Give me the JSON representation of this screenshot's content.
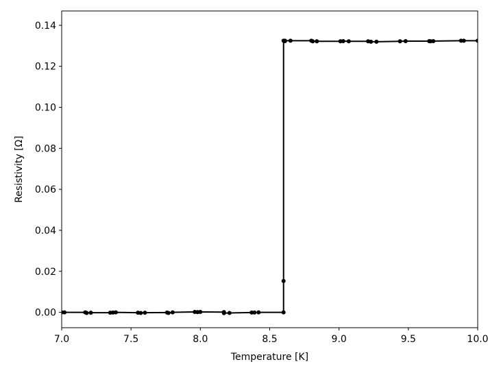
{
  "chart_data": {
    "type": "line",
    "xlabel": "Temperature [K]",
    "ylabel": "Resistivity [Ω]",
    "xlim": [
      7.0,
      10.0
    ],
    "ylim": [
      -0.0075,
      0.147
    ],
    "x_ticks": [
      "7.0",
      "7.5",
      "8.0",
      "8.5",
      "9.0",
      "9.5",
      "10.0"
    ],
    "y_ticks": [
      "0.00",
      "0.02",
      "0.04",
      "0.06",
      "0.08",
      "0.10",
      "0.12",
      "0.14"
    ],
    "grid": false,
    "legend": "none",
    "colors": {
      "line": "#000000",
      "marker": "#000000",
      "frame": "#000000"
    },
    "series": [
      {
        "marker": "circle",
        "x": [
          7.0,
          7.02,
          7.17,
          7.18,
          7.21,
          7.35,
          7.37,
          7.39,
          7.55,
          7.57,
          7.6,
          7.76,
          7.77,
          7.8,
          7.96,
          7.98,
          8.0,
          8.17,
          8.17,
          8.21,
          8.37,
          8.39,
          8.42,
          8.6,
          8.6,
          8.6,
          8.61,
          8.61,
          8.65,
          8.8,
          8.81,
          8.84,
          9.01,
          9.03,
          9.07,
          9.21,
          9.23,
          9.27,
          9.44,
          9.48,
          9.65,
          9.66,
          9.68,
          9.88,
          9.9,
          10.0
        ],
        "y": [
          0.0,
          0.0,
          0.0,
          -0.0003,
          -0.0002,
          -0.0002,
          -0.0001,
          0.0,
          -0.0002,
          -0.0003,
          -0.0002,
          -0.0001,
          -0.0003,
          0.0,
          0.0002,
          0.0001,
          0.0002,
          0.0001,
          -0.0004,
          -0.0003,
          -0.0001,
          -0.0001,
          0.0,
          0.0,
          0.0153,
          0.1325,
          0.1323,
          0.1325,
          0.1325,
          0.1325,
          0.1322,
          0.1322,
          0.1322,
          0.1323,
          0.1322,
          0.1322,
          0.132,
          0.132,
          0.1322,
          0.1323,
          0.1323,
          0.1322,
          0.1323,
          0.1325,
          0.1325,
          0.1325
        ]
      }
    ]
  }
}
